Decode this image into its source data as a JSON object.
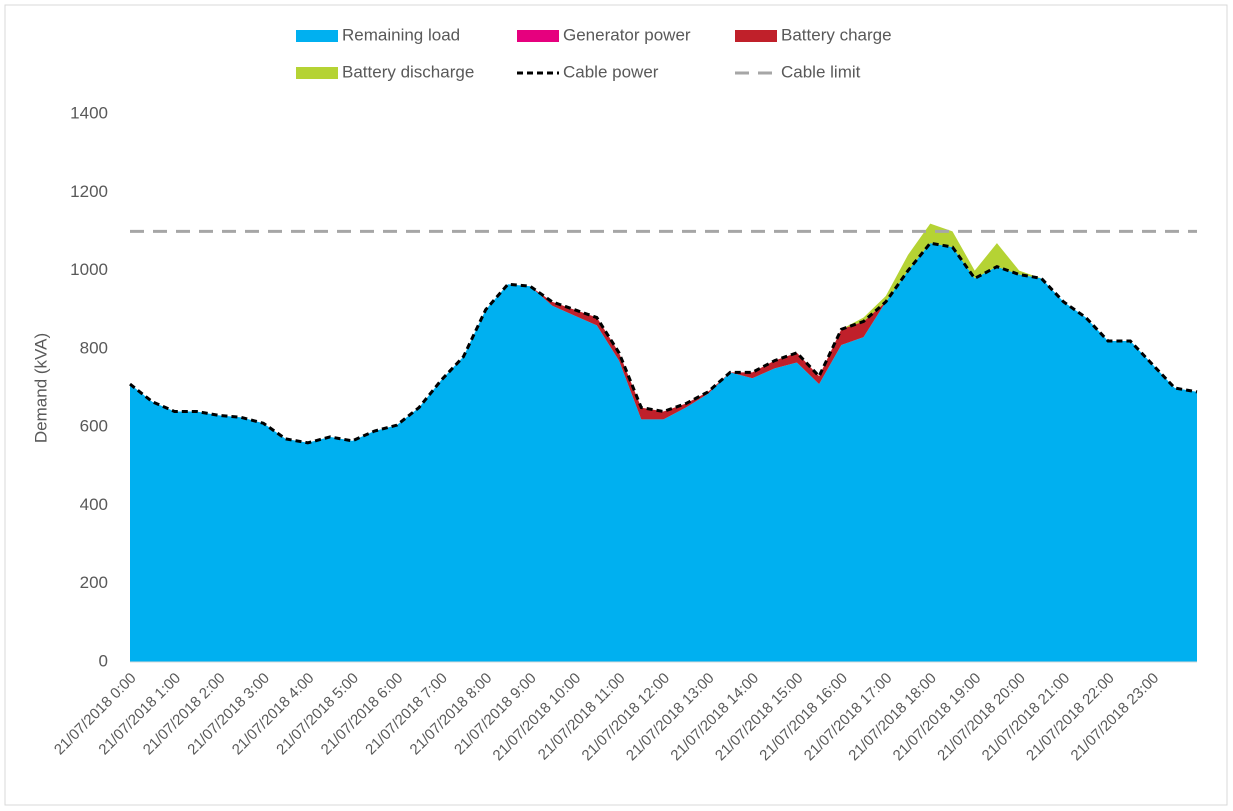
{
  "chart_data": {
    "type": "stacked_area",
    "y_label": "Demand (kVA)",
    "categories": [
      "21/07/2018 0:00",
      null,
      "21/07/2018 1:00",
      null,
      "21/07/2018 2:00",
      null,
      "21/07/2018 3:00",
      null,
      "21/07/2018 4:00",
      null,
      "21/07/2018 5:00",
      null,
      "21/07/2018 6:00",
      null,
      "21/07/2018 7:00",
      null,
      "21/07/2018 8:00",
      null,
      "21/07/2018 9:00",
      null,
      "21/07/2018 10:00",
      null,
      "21/07/2018 11:00",
      null,
      "21/07/2018 12:00",
      null,
      "21/07/2018 13:00",
      null,
      "21/07/2018 14:00",
      null,
      "21/07/2018 15:00",
      null,
      "21/07/2018 16:00",
      null,
      "21/07/2018 17:00",
      null,
      "21/07/2018 18:00",
      null,
      "21/07/2018 19:00",
      null,
      "21/07/2018 20:00",
      null,
      "21/07/2018 21:00",
      null,
      "21/07/2018 22:00",
      null,
      "21/07/2018 23:00",
      null,
      null
    ],
    "series": [
      {
        "name": "Remaining load",
        "kind": "area",
        "color": "#00b0f0",
        "values": [
          710,
          665,
          640,
          640,
          630,
          625,
          610,
          570,
          560,
          575,
          565,
          590,
          605,
          650,
          720,
          780,
          900,
          965,
          960,
          910,
          885,
          860,
          770,
          620,
          620,
          650,
          685,
          740,
          725,
          750,
          765,
          710,
          810,
          830,
          920,
          1000,
          1070,
          1060,
          980,
          1010,
          990,
          980,
          920,
          880,
          820,
          820,
          760,
          700,
          690
        ]
      },
      {
        "name": "Generator power",
        "kind": "area",
        "color": "#e6007e",
        "values": [
          0,
          0,
          0,
          0,
          0,
          0,
          0,
          0,
          0,
          0,
          0,
          0,
          0,
          0,
          0,
          0,
          0,
          0,
          0,
          0,
          0,
          0,
          0,
          0,
          0,
          0,
          0,
          0,
          0,
          0,
          0,
          0,
          0,
          0,
          0,
          0,
          0,
          0,
          0,
          0,
          0,
          0,
          0,
          0,
          0,
          0,
          0,
          0,
          0
        ]
      },
      {
        "name": "Battery charge",
        "kind": "area",
        "color": "#c0202a",
        "values": [
          0,
          0,
          0,
          0,
          0,
          0,
          0,
          0,
          0,
          0,
          0,
          0,
          0,
          0,
          0,
          0,
          0,
          0,
          0,
          10,
          15,
          20,
          20,
          30,
          20,
          10,
          5,
          0,
          15,
          20,
          25,
          20,
          40,
          40,
          0,
          0,
          0,
          0,
          0,
          0,
          0,
          0,
          0,
          0,
          0,
          0,
          0,
          0,
          0
        ]
      },
      {
        "name": "Battery discharge",
        "kind": "area",
        "color": "#b5d334",
        "values": [
          0,
          0,
          0,
          0,
          0,
          0,
          0,
          0,
          0,
          0,
          0,
          0,
          0,
          0,
          0,
          0,
          0,
          0,
          0,
          0,
          0,
          0,
          0,
          0,
          0,
          0,
          0,
          0,
          0,
          0,
          0,
          0,
          0,
          10,
          15,
          40,
          50,
          40,
          20,
          60,
          10,
          0,
          0,
          0,
          0,
          0,
          0,
          0,
          0
        ]
      },
      {
        "name": "Cable power",
        "kind": "line",
        "color": "#000000",
        "values": [
          710,
          665,
          640,
          640,
          630,
          625,
          610,
          570,
          560,
          575,
          565,
          590,
          605,
          650,
          720,
          780,
          900,
          965,
          960,
          920,
          900,
          880,
          790,
          650,
          640,
          660,
          690,
          740,
          740,
          770,
          790,
          730,
          850,
          870,
          920,
          1000,
          1070,
          1060,
          980,
          1010,
          990,
          980,
          920,
          880,
          820,
          820,
          760,
          700,
          690
        ]
      }
    ],
    "reference_lines": [
      {
        "name": "Cable limit",
        "value": 1100,
        "color": "#a6a6a6"
      }
    ],
    "ylim": [
      0,
      1400
    ],
    "yticks": [
      0,
      200,
      400,
      600,
      800,
      1000,
      1200,
      1400
    ],
    "grid": false
  }
}
